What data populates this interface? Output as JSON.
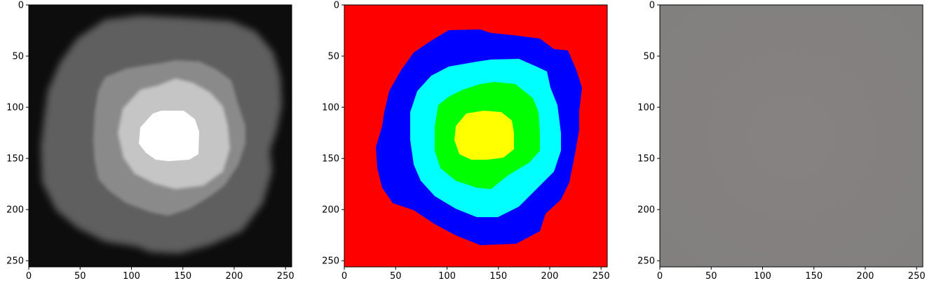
{
  "figure": {
    "background": "#ffffff",
    "panels": [
      {
        "id": "grayscale-image",
        "xticks": [
          "0",
          "50",
          "100",
          "150",
          "200",
          "250"
        ],
        "yticks": [
          "0",
          "50",
          "100",
          "150",
          "200",
          "250"
        ]
      },
      {
        "id": "segmentation-map",
        "xticks": [
          "0",
          "50",
          "100",
          "150",
          "200",
          "250"
        ],
        "yticks": [
          "0",
          "50",
          "100",
          "150",
          "200",
          "250"
        ]
      },
      {
        "id": "flat-gray-image",
        "xticks": [
          "0",
          "50",
          "100",
          "150",
          "200",
          "250"
        ],
        "yticks": [
          "0",
          "50",
          "100",
          "150",
          "200",
          "250"
        ]
      }
    ]
  },
  "chart_data": [
    {
      "type": "heatmap",
      "title": "",
      "xlabel": "",
      "ylabel": "",
      "xlim": [
        0,
        256
      ],
      "ylim": [
        256,
        0
      ],
      "image_size": [
        256,
        256
      ],
      "colormap": "gray",
      "regions": [
        {
          "name": "background",
          "gray": "#0d0d0d"
        },
        {
          "name": "outer-ring",
          "gray": "#606060"
        },
        {
          "name": "middle-ring",
          "gray": "#8a8a8a"
        },
        {
          "name": "inner-ring",
          "gray": "#c4c4c4"
        },
        {
          "name": "core",
          "gray": "#ffffff"
        }
      ],
      "core_center": [
        140,
        133
      ]
    },
    {
      "type": "heatmap",
      "title": "",
      "xlabel": "",
      "ylabel": "",
      "xlim": [
        0,
        256
      ],
      "ylim": [
        256,
        0
      ],
      "image_size": [
        256,
        256
      ],
      "labels": [
        {
          "class": 0,
          "color": "#ff0000"
        },
        {
          "class": 1,
          "color": "#0000ff"
        },
        {
          "class": 2,
          "color": "#00ffff"
        },
        {
          "class": 3,
          "color": "#00ff00"
        },
        {
          "class": 4,
          "color": "#ffff00"
        }
      ]
    },
    {
      "type": "heatmap",
      "title": "",
      "xlabel": "",
      "ylabel": "",
      "xlim": [
        0,
        256
      ],
      "ylim": [
        256,
        0
      ],
      "image_size": [
        256,
        256
      ],
      "fill_color": "#848080"
    }
  ]
}
